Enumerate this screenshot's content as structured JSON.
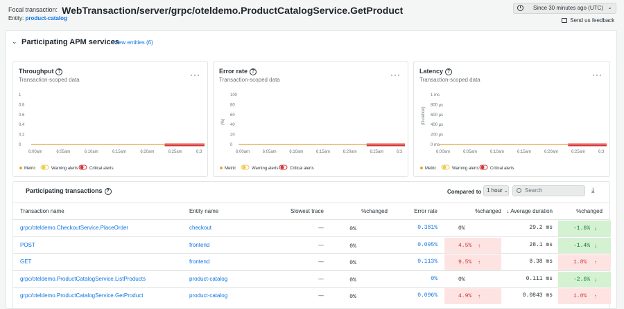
{
  "header": {
    "focal_label": "Focal transaction:",
    "focal_title": "WebTransaction/server/grpc/oteldemo.ProductCatalogService.GetProduct",
    "entity_label": "Entity:",
    "entity_value": "product-catalog",
    "time_range": "Since 30 minutes ago (UTC)",
    "feedback": "Send us feedback"
  },
  "section": {
    "title": "Participating APM services",
    "view_entities": "View entities (6)"
  },
  "charts_common": {
    "subtitle": "Transaction-scoped data",
    "x_ticks": [
      "6:00am",
      "6:05am",
      "6:10am",
      "6:15am",
      "6:20am",
      "6:25am",
      "6:3"
    ],
    "legend": {
      "metric": "Metric",
      "warning": "Warning alerts",
      "critical": "Critical alerts"
    },
    "colors": {
      "metric": "#e6a23c",
      "warning": "#f2c94c",
      "critical": "#d2353a"
    }
  },
  "chart_data": [
    {
      "type": "line",
      "title": "Throughput",
      "ylabel": "",
      "y_ticks": [
        "1",
        "0.8",
        "0.6",
        "0.4",
        "0.2",
        "0"
      ],
      "ylim": [
        0,
        1
      ],
      "x": [
        "6:00am",
        "6:05am",
        "6:10am",
        "6:15am",
        "6:20am",
        "6:25am",
        "6:3"
      ],
      "series": [
        {
          "values": [
            0,
            0,
            0,
            0,
            0,
            0,
            0
          ]
        }
      ],
      "critical_window": [
        "6:22am",
        "6:30am"
      ]
    },
    {
      "type": "line",
      "title": "Error rate",
      "ylabel": "(%)",
      "y_ticks": [
        "100",
        "80",
        "60",
        "40",
        "20",
        "0"
      ],
      "ylim": [
        0,
        100
      ],
      "x": [
        "6:00am",
        "6:05am",
        "6:10am",
        "6:15am",
        "6:20am",
        "6:25am",
        "6:3"
      ],
      "series": [
        {
          "values": [
            0,
            0,
            0,
            0,
            0,
            0,
            0
          ]
        }
      ],
      "critical_window": [
        "6:22am",
        "6:30am"
      ]
    },
    {
      "type": "line",
      "title": "Latency",
      "ylabel": "(Duration)",
      "y_ticks": [
        "1 ms",
        "800 µs",
        "600 µs",
        "400 µs",
        "200 µs",
        "0 ms"
      ],
      "ylim": [
        0,
        1
      ],
      "x": [
        "6:00am",
        "6:05am",
        "6:10am",
        "6:15am",
        "6:20am",
        "6:25am",
        "6:3"
      ],
      "series": [
        {
          "values": [
            0,
            0,
            0,
            0,
            0,
            0,
            0
          ]
        }
      ],
      "critical_window": [
        "6:22am",
        "6:30am"
      ]
    }
  ],
  "transactions": {
    "title": "Participating transactions",
    "compared_to_label": "Compared to",
    "compared_to_value": "1 hour",
    "search_placeholder": "Search",
    "columns": [
      "Transaction name",
      "Entity name",
      "Slowest trace",
      "%changed",
      "Error rate",
      "%changed",
      "↓ Average duration",
      "%changed"
    ],
    "rows": [
      {
        "name": "grpc/oteldemo.CheckoutService.PlaceOrder",
        "entity": "checkout",
        "slowest": "---",
        "chg1": "0%",
        "error_rate": "0.381%",
        "chg2": "0%",
        "chg2_dir": "none",
        "avg": "29.2 ms",
        "chg3": "-1.6%",
        "chg3_dir": "down"
      },
      {
        "name": "POST",
        "entity": "frontend",
        "slowest": "---",
        "chg1": "0%",
        "error_rate": "0.095%",
        "chg2": "4.5%",
        "chg2_dir": "up",
        "avg": "28.1 ms",
        "chg3": "-1.4%",
        "chg3_dir": "down"
      },
      {
        "name": "GET",
        "entity": "frontend",
        "slowest": "---",
        "chg1": "0%",
        "error_rate": "0.113%",
        "chg2": "9.5%",
        "chg2_dir": "up",
        "avg": "8.38 ms",
        "chg3": "1.8%",
        "chg3_dir": "up"
      },
      {
        "name": "grpc/oteldemo.ProductCatalogService.ListProducts",
        "entity": "product-catalog",
        "slowest": "---",
        "chg1": "0%",
        "error_rate": "0%",
        "chg2": "0%",
        "chg2_dir": "none",
        "avg": "0.111 ms",
        "chg3": "-2.6%",
        "chg3_dir": "down"
      },
      {
        "name": "grpc/oteldemo.ProductCatalogService.GetProduct",
        "entity": "product-catalog",
        "slowest": "---",
        "chg1": "0%",
        "error_rate": "0.096%",
        "chg2": "4.9%",
        "chg2_dir": "up",
        "avg": "0.0843 ms",
        "chg3": "1.0%",
        "chg3_dir": "up"
      }
    ]
  }
}
